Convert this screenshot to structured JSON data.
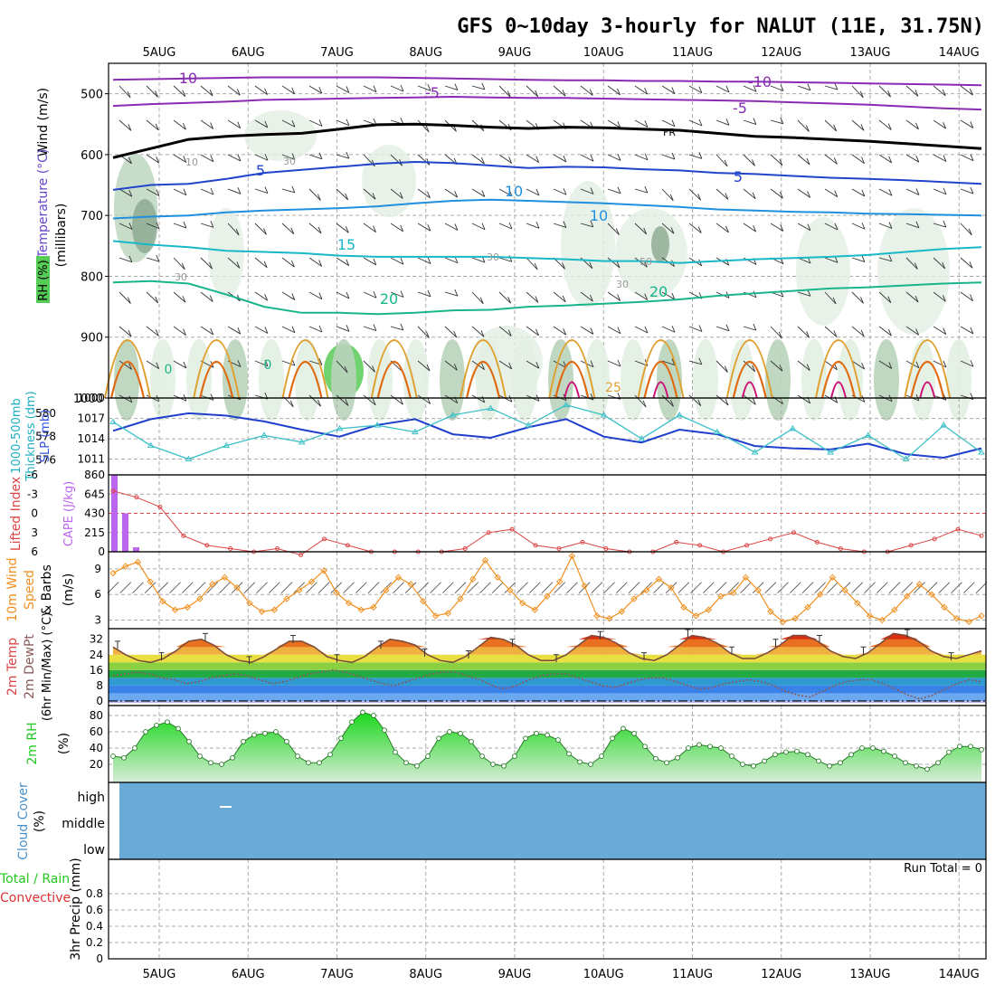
{
  "title": "GFS 0~10day 3-hourly for NALUT (11E, 31.75N)",
  "days": [
    "5AUG",
    "6AUG",
    "7AUG",
    "8AUG",
    "9AUG",
    "10AUG",
    "11AUG",
    "12AUG",
    "13AUG",
    "14AUG"
  ],
  "colors": {
    "frame": "#000000",
    "grid": "#aaaaaa",
    "rh_fill_light": "#e3efe3",
    "rh_fill_mid": "#b9d3bb",
    "rh_fill_dark": "#8aa78e",
    "rh_fill_wet": "#4cc84c",
    "temp_minus10": "#8a2bb3",
    "temp_freezing": "#000000",
    "temp_5": "#2244cc",
    "temp_10": "#1f8fe0",
    "temp_15": "#18b8c8",
    "temp_20": "#19b58a",
    "temp_25": "#e0a030",
    "temp_30": "#e06a10",
    "temp_35": "#cc1177",
    "thickness": "#1f3fcc",
    "slp": "#3cc0c8",
    "cape": "#bb66ee",
    "lifted_index": "#dd4444",
    "wind10m": "#f09020",
    "dewpoint": "#8a5a5a",
    "rh2m": "#22c822",
    "cloud": "#6aaad6"
  },
  "panels": {
    "upper": {
      "label_wind": "Wind (m/s)",
      "label_temp": "Temperature (°C)",
      "label_rh": "RH (%)",
      "label_unit": "(millibars)",
      "contour_labels": [
        "-10",
        "-5",
        "FR",
        "5",
        "10",
        "15",
        "20",
        "25",
        "-10",
        "-5",
        "5",
        "10",
        "20",
        "0",
        "0",
        "10",
        "30",
        "30",
        "30",
        "50",
        "30"
      ]
    },
    "thickness": {
      "label1": "1000-500mb",
      "label2": "Thickness (dm)",
      "label3": "SLP (mb)"
    },
    "cape": {
      "label1": "Lifted Index",
      "label2": "CAPE (J/kg)"
    },
    "wind10m": {
      "label1": "10m Wind",
      "label2": "Speed",
      "label3": "& Barbs",
      "label4": "(m/s)"
    },
    "temp2m": {
      "label1": "2m Temp",
      "label2": "2m DewPt",
      "label3": "(6hr Min/Max) (°C)"
    },
    "rh2m": {
      "label1": "2m RH",
      "label2": "(%)"
    },
    "cloud": {
      "label1": "Cloud Cover",
      "label2": "(%)",
      "levels": [
        "high",
        "middle",
        "low"
      ]
    },
    "precip": {
      "label1": "Total / Rain",
      "label2": "Convective",
      "label3": "3hr Precip (mm)",
      "run_total": "Run Total = 0"
    }
  },
  "chart_data": [
    {
      "type": "line",
      "name": "temperature-contours",
      "ylabel": "millibars",
      "ylim": [
        1000,
        450
      ],
      "y_ticks": [
        500,
        600,
        700,
        800,
        900,
        1000
      ],
      "x_range_days": [
        0,
        10
      ],
      "series": [
        {
          "name": "-10",
          "values": [
            477,
            476,
            475,
            474,
            473,
            473,
            473,
            473,
            474,
            475,
            476,
            477,
            478,
            478,
            479,
            479,
            480,
            480,
            481,
            482,
            483,
            484,
            485,
            486
          ]
        },
        {
          "name": "-5",
          "values": [
            520,
            517,
            515,
            513,
            510,
            509,
            508,
            507,
            506,
            505,
            506,
            507,
            507,
            508,
            509,
            510,
            511,
            512,
            514,
            516,
            518,
            521,
            524,
            526
          ]
        },
        {
          "name": "FR",
          "values": [
            605,
            590,
            575,
            570,
            567,
            565,
            558,
            551,
            550,
            552,
            555,
            557,
            555,
            556,
            558,
            560,
            565,
            570,
            572,
            575,
            578,
            582,
            586,
            590
          ]
        },
        {
          "name": "5",
          "values": [
            658,
            650,
            648,
            640,
            630,
            625,
            620,
            615,
            612,
            614,
            618,
            622,
            620,
            621,
            624,
            626,
            630,
            632,
            635,
            638,
            640,
            642,
            645,
            648
          ]
        },
        {
          "name": "10",
          "values": [
            705,
            702,
            700,
            695,
            692,
            690,
            688,
            685,
            680,
            676,
            674,
            676,
            678,
            680,
            683,
            686,
            690,
            692,
            694,
            695,
            697,
            698,
            699,
            700
          ]
        },
        {
          "name": "15",
          "values": [
            742,
            748,
            752,
            758,
            760,
            762,
            766,
            768,
            768,
            768,
            768,
            770,
            772,
            775,
            775,
            778,
            775,
            772,
            770,
            768,
            765,
            760,
            755,
            752
          ]
        },
        {
          "name": "20",
          "values": [
            810,
            808,
            812,
            830,
            850,
            860,
            860,
            862,
            860,
            856,
            855,
            850,
            848,
            845,
            842,
            838,
            832,
            828,
            824,
            820,
            818,
            815,
            812,
            810
          ]
        }
      ],
      "rh_contours": [
        "10",
        "30",
        "50"
      ]
    },
    {
      "type": "line",
      "name": "thickness-slp",
      "y_left_ticks": [
        576,
        578,
        580
      ],
      "y_right_ticks": [
        1011,
        1014,
        1017,
        1000
      ],
      "series": [
        {
          "name": "Thickness",
          "values": [
            578.5,
            579.5,
            580.0,
            579.8,
            579.3,
            578.6,
            578.0,
            579.0,
            579.5,
            578.2,
            577.9,
            578.8,
            579.5,
            578.0,
            577.5,
            578.6,
            578.2,
            577.2,
            577.0,
            576.9,
            577.4,
            576.5,
            576.2,
            577.0
          ]
        },
        {
          "name": "SLP",
          "values": [
            1016.5,
            1013.0,
            1011.0,
            1013.0,
            1014.5,
            1013.5,
            1015.5,
            1016.0,
            1015.0,
            1017.5,
            1018.5,
            1016.0,
            1019.0,
            1017.5,
            1014.0,
            1017.5,
            1015.0,
            1012.0,
            1015.5,
            1012.0,
            1014.5,
            1011.0,
            1016.0,
            1012.0
          ]
        }
      ]
    },
    {
      "type": "bar",
      "name": "cape-lifted-index",
      "ylabel": "CAPE (J/kg)",
      "y_ticks_cape": [
        0,
        215,
        430,
        645,
        860
      ],
      "y_ticks_li": [
        -6,
        -3,
        0,
        3,
        6
      ],
      "cape_values": [
        860,
        430,
        50,
        0,
        0,
        0,
        0,
        0,
        0,
        0,
        0,
        0
      ],
      "li_values": [
        -3.5,
        -2.5,
        -1.0,
        3.5,
        5.0,
        5.5,
        6.0,
        5.5,
        6.5,
        4.0,
        5.0,
        6.0,
        6.0,
        6.0,
        6.0,
        5.5,
        3.0,
        2.5,
        5.0,
        5.5,
        4.5,
        5.5,
        6.0,
        6.0,
        4.5,
        5.0,
        6.0,
        5.0,
        4.0,
        3.0,
        4.5,
        5.5,
        6.0,
        6.0,
        5.0,
        4.0,
        2.5,
        3.5
      ]
    },
    {
      "type": "line",
      "name": "wind10m-speed",
      "ylabel": "m/s",
      "ylim": [
        2,
        11
      ],
      "y_ticks": [
        3,
        6,
        9
      ],
      "values": [
        8.5,
        9.3,
        9.8,
        7.5,
        5.2,
        4.2,
        4.5,
        5.5,
        7.2,
        8.0,
        6.8,
        5.0,
        4.0,
        4.2,
        5.5,
        6.5,
        7.5,
        8.8,
        6.2,
        5.0,
        4.2,
        4.5,
        6.5,
        8.0,
        7.2,
        5.2,
        3.5,
        3.8,
        5.5,
        7.8,
        10.0,
        8.0,
        6.5,
        5.0,
        4.2,
        5.8,
        7.5,
        10.5,
        7.0,
        3.5,
        3.2,
        4.0,
        5.5,
        6.5,
        7.8,
        6.8,
        4.5,
        3.5,
        4.2,
        5.8,
        6.2,
        8.0,
        6.5,
        4.0,
        2.8,
        3.2,
        4.5,
        6.0,
        8.0,
        6.5,
        5.0,
        3.5,
        3.0,
        4.2,
        5.8,
        7.2,
        6.0,
        4.5,
        3.2,
        2.8,
        3.5
      ]
    },
    {
      "type": "area",
      "name": "temp2m-dewpoint",
      "ylabel": "°C",
      "y_ticks": [
        0,
        8,
        16,
        24,
        32
      ],
      "temp": [
        28,
        24,
        21,
        20,
        22,
        26,
        31,
        32,
        29,
        24,
        21,
        20,
        23,
        27,
        31,
        31,
        28,
        23,
        21,
        20,
        23,
        28,
        32,
        31,
        29,
        24,
        21,
        20,
        23,
        28,
        33,
        32,
        29,
        24,
        21,
        21,
        24,
        29,
        34,
        33,
        30,
        25,
        22,
        21,
        24,
        29,
        34,
        33,
        30,
        25,
        22,
        22,
        25,
        29,
        34,
        34,
        31,
        26,
        23,
        22,
        25,
        30,
        35,
        34,
        31,
        26,
        23,
        22,
        24,
        26
      ],
      "dewpoint": [
        13,
        14,
        15,
        14,
        12,
        11,
        9,
        10,
        12,
        13,
        14,
        13,
        11,
        9,
        10,
        12,
        14,
        15,
        16,
        15,
        13,
        11,
        9,
        8,
        10,
        12,
        14,
        15,
        15,
        13,
        11,
        8,
        6,
        8,
        11,
        13,
        14,
        14,
        12,
        10,
        8,
        7,
        9,
        11,
        12,
        12,
        10,
        8,
        6,
        7,
        9,
        10,
        11,
        10,
        8,
        5,
        3,
        2,
        5,
        8,
        10,
        11,
        11,
        9,
        6,
        3,
        1,
        3,
        6,
        9,
        11,
        10
      ]
    },
    {
      "type": "area",
      "name": "rh2m",
      "ylabel": "%",
      "y_ticks": [
        20,
        40,
        60,
        80
      ],
      "values": [
        30,
        28,
        40,
        60,
        68,
        72,
        64,
        48,
        30,
        22,
        20,
        28,
        48,
        56,
        58,
        60,
        48,
        30,
        22,
        22,
        32,
        52,
        72,
        84,
        80,
        62,
        35,
        22,
        18,
        30,
        52,
        60,
        58,
        48,
        30,
        20,
        18,
        30,
        52,
        58,
        56,
        50,
        33,
        23,
        20,
        30,
        52,
        64,
        58,
        42,
        27,
        22,
        28,
        40,
        44,
        42,
        40,
        30,
        20,
        18,
        24,
        32,
        35,
        36,
        32,
        24,
        18,
        22,
        32,
        40,
        40,
        36,
        30,
        22,
        18,
        14,
        22,
        35,
        42,
        42,
        38
      ]
    },
    {
      "type": "table",
      "name": "cloud-cover",
      "levels": [
        "high",
        "middle",
        "low"
      ],
      "values": [
        0,
        0,
        0
      ]
    },
    {
      "type": "bar",
      "name": "3hr-precip",
      "ylabel": "3hr Precip (mm)",
      "ylim": [
        0,
        1
      ],
      "y_ticks": [
        0,
        0.2,
        0.4,
        0.6,
        0.8
      ],
      "values": [
        0,
        0,
        0,
        0,
        0,
        0,
        0,
        0,
        0,
        0
      ]
    }
  ]
}
